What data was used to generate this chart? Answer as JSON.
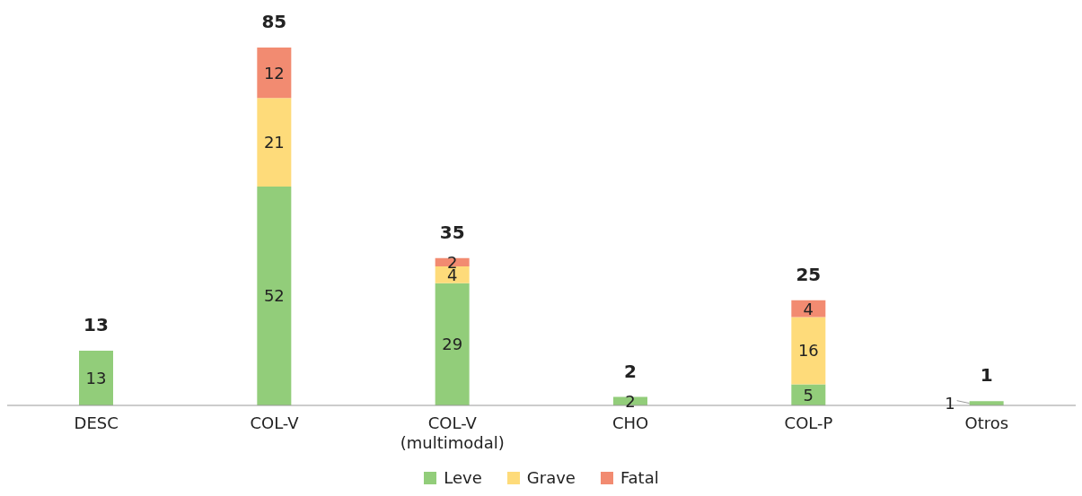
{
  "chart_data": {
    "type": "bar",
    "stacked": true,
    "data_labels": true,
    "legend": "bottom",
    "grid": false,
    "categories": [
      "DESC",
      "COL-V",
      "COL-V\n(multimodal)",
      "CHO",
      "COL-P",
      "Otros"
    ],
    "series": [
      {
        "name": "Leve",
        "color": "#92cd7a",
        "values": [
          13,
          52,
          29,
          2,
          5,
          1
        ]
      },
      {
        "name": "Grave",
        "color": "#fedb7a",
        "values": [
          null,
          21,
          4,
          null,
          16,
          null
        ]
      },
      {
        "name": "Fatal",
        "color": "#f28b71",
        "values": [
          null,
          12,
          2,
          null,
          4,
          null
        ]
      }
    ],
    "totals": [
      "13",
      "85",
      "35",
      "2",
      "25",
      "1"
    ]
  }
}
